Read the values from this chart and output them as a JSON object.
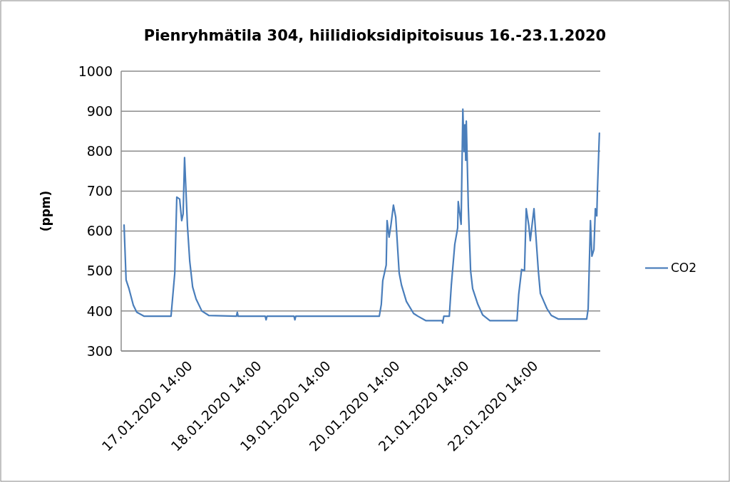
{
  "chart_data": {
    "type": "line",
    "title": "Pienryhmätila 304, hiilidioksidipitoisuus 16.-23.1.2020",
    "ylabel": "(ppm)",
    "x": [
      "2020-01-16T14:00",
      "2020-01-16T14:42",
      "2020-01-16T15:42",
      "2020-01-16T17:12",
      "2020-01-16T18:24",
      "2020-01-16T21:00",
      "2020-01-17T06:18",
      "2020-01-17T07:36",
      "2020-01-17T08:18",
      "2020-01-17T09:18",
      "2020-01-17T10:00",
      "2020-01-17T10:30",
      "2020-01-17T11:00",
      "2020-01-17T12:00",
      "2020-01-17T12:48",
      "2020-01-17T13:48",
      "2020-01-17T15:00",
      "2020-01-17T17:00",
      "2020-01-17T19:24",
      "2020-01-18T05:00",
      "2020-01-18T05:18",
      "2020-01-18T05:36",
      "2020-01-18T15:00",
      "2020-01-18T15:18",
      "2020-01-18T15:36",
      "2020-01-19T01:00",
      "2020-01-19T01:18",
      "2020-01-19T01:36",
      "2020-01-20T06:36",
      "2020-01-20T07:18",
      "2020-01-20T07:48",
      "2020-01-20T09:00",
      "2020-01-20T09:18",
      "2020-01-20T10:00",
      "2020-01-20T10:36",
      "2020-01-20T11:30",
      "2020-01-20T12:18",
      "2020-01-20T13:30",
      "2020-01-20T14:18",
      "2020-01-20T16:00",
      "2020-01-20T18:30",
      "2020-01-20T20:00",
      "2020-01-20T22:42",
      "2020-01-21T04:24",
      "2020-01-21T04:36",
      "2020-01-21T05:00",
      "2020-01-21T06:54",
      "2020-01-21T07:36",
      "2020-01-21T08:48",
      "2020-01-21T09:48",
      "2020-01-21T10:00",
      "2020-01-21T11:00",
      "2020-01-21T11:36",
      "2020-01-21T12:00",
      "2020-01-21T12:18",
      "2020-01-21T12:36",
      "2020-01-21T12:48",
      "2020-01-21T13:30",
      "2020-01-21T14:18",
      "2020-01-21T15:00",
      "2020-01-21T16:48",
      "2020-01-21T18:30",
      "2020-01-21T21:00",
      "2020-01-22T06:24",
      "2020-01-22T07:00",
      "2020-01-22T08:00",
      "2020-01-22T09:00",
      "2020-01-22T09:36",
      "2020-01-22T10:30",
      "2020-01-22T11:00",
      "2020-01-22T11:48",
      "2020-01-22T12:18",
      "2020-01-22T13:48",
      "2020-01-22T14:30",
      "2020-01-22T16:48",
      "2020-01-22T18:18",
      "2020-01-22T20:42",
      "2020-01-23T06:36",
      "2020-01-23T07:06",
      "2020-01-23T07:54",
      "2020-01-23T08:24",
      "2020-01-23T09:06",
      "2020-01-23T09:36",
      "2020-01-23T10:06",
      "2020-01-23T10:18",
      "2020-01-23T11:00"
    ],
    "series": [
      {
        "name": "CO2",
        "color": "#4a7ebb",
        "values": [
          615,
          478,
          456,
          415,
          397,
          387,
          387,
          495,
          685,
          680,
          626,
          643,
          784,
          613,
          524,
          460,
          430,
          400,
          389,
          387,
          397,
          387,
          387,
          378,
          387,
          387,
          378,
          387,
          387,
          417,
          476,
          515,
          626,
          585,
          613,
          665,
          635,
          495,
          465,
          424,
          394,
          387,
          376,
          376,
          370,
          387,
          387,
          465,
          567,
          608,
          674,
          617,
          905,
          799,
          866,
          777,
          875,
          661,
          500,
          456,
          417,
          390,
          376,
          376,
          442,
          504,
          501,
          656,
          614,
          576,
          626,
          656,
          501,
          444,
          406,
          389,
          380,
          380,
          406,
          626,
          537,
          554,
          656,
          638,
          697,
          845
        ]
      }
    ],
    "xlim": [
      "2020-01-16T13:00",
      "2020-01-23T11:18"
    ],
    "xticks": [
      {
        "value": "2020-01-17T14:00",
        "label": "17.01.2020 14:00"
      },
      {
        "value": "2020-01-18T14:00",
        "label": "18.01.2020 14:00"
      },
      {
        "value": "2020-01-19T14:00",
        "label": "19.01.2020 14:00"
      },
      {
        "value": "2020-01-20T14:00",
        "label": "20.01.2020 14:00"
      },
      {
        "value": "2020-01-21T14:00",
        "label": "21.01.2020 14:00"
      },
      {
        "value": "2020-01-22T14:00",
        "label": "22.01.2020 14:00"
      }
    ],
    "ylim": [
      300,
      1000
    ],
    "yticks": [
      300,
      400,
      500,
      600,
      700,
      800,
      900,
      1000
    ],
    "grid": "y",
    "legend": "right",
    "marker": "none",
    "line_style": "solid"
  }
}
